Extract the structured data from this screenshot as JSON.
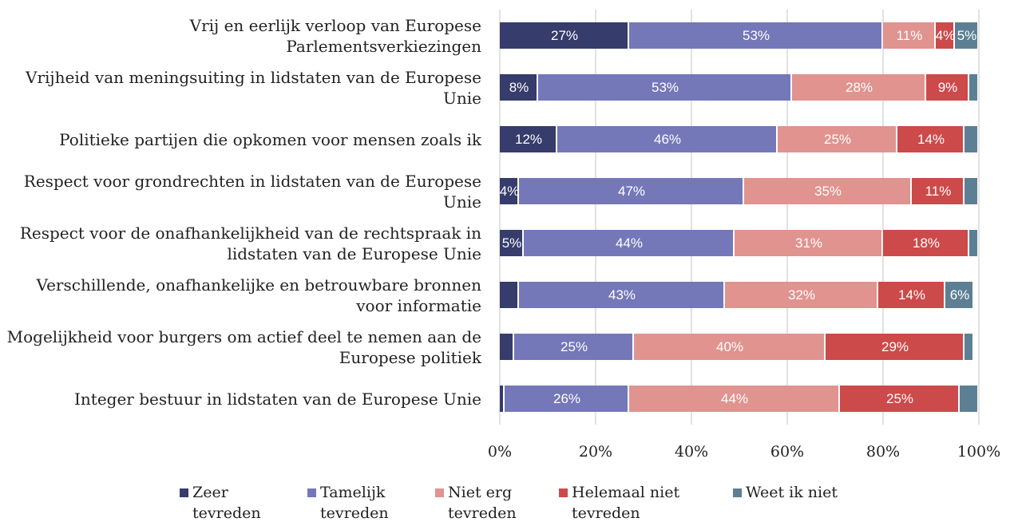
{
  "chart_data": {
    "type": "stacked-bar-horizontal",
    "categories": [
      "Vrij en eerlijk verloop van Europese Parlementsverkiezingen",
      "Vrijheid van meningsuiting in lidstaten van de Europese Unie",
      "Politieke partijen die opkomen voor mensen zoals ik",
      "Respect voor grondrechten in lidstaten van de Europese Unie",
      "Respect voor de onafhankelijkheid van de rechtspraak in lidstaten van de Europese Unie",
      "Verschillende, onafhankelijke en betrouwbare bronnen voor informatie",
      "Mogelijkheid voor burgers om actief deel te nemen aan de Europese politiek",
      "Integer bestuur in lidstaten van de Europese Unie"
    ],
    "series": [
      {
        "name": "Zeer tevreden",
        "color": "#363c6b",
        "values": [
          27,
          8,
          12,
          4,
          5,
          4,
          3,
          1
        ],
        "value_labels": [
          "27%",
          "8%",
          "12%",
          "4%",
          "5%",
          null,
          null,
          null
        ]
      },
      {
        "name": "Tamelijk tevreden",
        "color": "#7478b8",
        "values": [
          53,
          53,
          46,
          47,
          44,
          43,
          25,
          26
        ],
        "value_labels": [
          "53%",
          "53%",
          "46%",
          "47%",
          "44%",
          "43%",
          "25%",
          "26%"
        ]
      },
      {
        "name": "Niet erg tevreden",
        "color": "#e0938f",
        "values": [
          11,
          28,
          25,
          35,
          31,
          32,
          40,
          44
        ],
        "value_labels": [
          "11%",
          "28%",
          "25%",
          "35%",
          "31%",
          "32%",
          "40%",
          "44%"
        ]
      },
      {
        "name": "Helemaal niet tevreden",
        "color": "#cc4a4a",
        "values": [
          4,
          9,
          14,
          11,
          18,
          14,
          29,
          25
        ],
        "value_labels": [
          "4%",
          "9%",
          "14%",
          "11%",
          "18%",
          "14%",
          "29%",
          "25%"
        ]
      },
      {
        "name": "Weet ik niet",
        "color": "#5d7f93",
        "values": [
          5,
          2,
          3,
          3,
          2,
          6,
          2,
          4
        ],
        "value_labels": [
          "5%",
          null,
          null,
          null,
          null,
          "6%",
          null,
          null
        ]
      }
    ],
    "xlim": [
      0,
      100
    ],
    "xticks": [
      {
        "value": 0,
        "label": "0%"
      },
      {
        "value": 20,
        "label": "20%"
      },
      {
        "value": 40,
        "label": "40%"
      },
      {
        "value": 60,
        "label": "60%"
      },
      {
        "value": 80,
        "label": "80%"
      },
      {
        "value": 100,
        "label": "100%"
      }
    ],
    "grid": true,
    "legend": "bottom"
  }
}
